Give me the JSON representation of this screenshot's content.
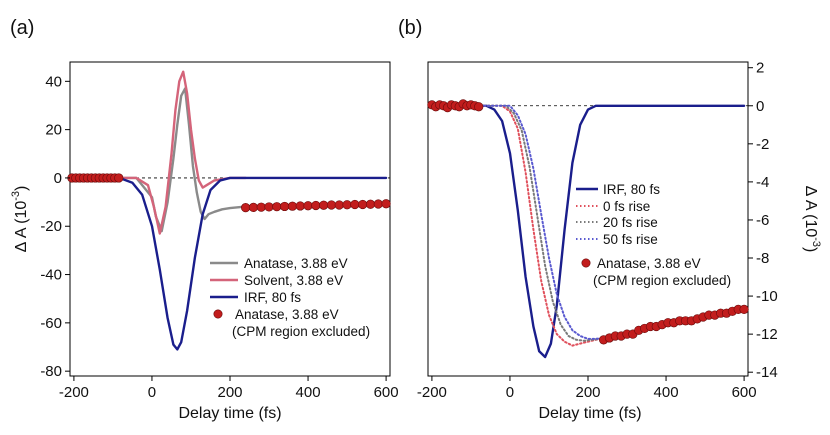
{
  "chart_data": [
    {
      "panel_label": "(a)",
      "type": "line",
      "xlabel": "Delay time (fs)",
      "ylabel": "ΔA (10⁻³)",
      "ylabel_main": "Δ A (10",
      "ylabel_exp": "-3",
      "ylabel_close": ")",
      "xlim": [
        -210,
        610
      ],
      "ylim": [
        -82,
        48
      ],
      "xticks": [
        -200,
        0,
        200,
        400,
        600
      ],
      "yticks": [
        40,
        20,
        0,
        -20,
        -40,
        -60,
        -80
      ],
      "zero_line": true,
      "legend_position": "lower-right",
      "legend": [
        "Anatase, 3.88 eV",
        "Solvent, 3.88 eV",
        "IRF, 80 fs",
        "Anatase, 3.88 eV",
        "(CPM region excluded)"
      ],
      "series": [
        {
          "name": "Anatase, 3.88 eV",
          "style": "line",
          "color": "#8a8a8a",
          "x": [
            -80,
            -40,
            0,
            10,
            25,
            40,
            55,
            65,
            75,
            85,
            95,
            105,
            115,
            125,
            135,
            145,
            160,
            180,
            200,
            230
          ],
          "y": [
            0,
            0,
            -8,
            -16,
            -22,
            -10,
            8,
            22,
            34,
            37,
            22,
            5,
            -6,
            -14,
            -17,
            -15,
            -14,
            -13,
            -12.5,
            -12
          ]
        },
        {
          "name": "Solvent, 3.88 eV",
          "style": "line",
          "color": "#d4647a",
          "x": [
            -80,
            -40,
            -10,
            5,
            20,
            35,
            50,
            60,
            70,
            80,
            90,
            100,
            110,
            120,
            130,
            140,
            160,
            200,
            240
          ],
          "y": [
            0,
            0,
            -3,
            -12,
            -23,
            -12,
            10,
            28,
            40,
            44,
            35,
            20,
            8,
            -1,
            -4,
            -3,
            -1,
            0,
            0
          ]
        },
        {
          "name": "IRF, 80 fs",
          "style": "line",
          "color": "#1a1e8c",
          "x": [
            -200,
            -100,
            -75,
            -50,
            -25,
            0,
            20,
            40,
            55,
            65,
            75,
            90,
            110,
            130,
            150,
            175,
            200,
            230,
            300,
            600
          ],
          "y": [
            0,
            0,
            -0.5,
            -2,
            -7,
            -20,
            -38,
            -58,
            -69,
            -71,
            -68,
            -55,
            -33,
            -15,
            -5,
            -1,
            0,
            0,
            0,
            0
          ]
        },
        {
          "name": "Anatase, 3.88 eV (CPM region excluded)",
          "style": "markers",
          "color": "#c21d1d",
          "x": [
            -205,
            -195,
            -185,
            -175,
            -165,
            -155,
            -145,
            -135,
            -125,
            -115,
            -105,
            -95,
            -85,
            240,
            260,
            280,
            300,
            320,
            340,
            360,
            380,
            400,
            420,
            440,
            460,
            480,
            500,
            520,
            540,
            560,
            580,
            600
          ],
          "y": [
            0,
            0,
            0,
            0,
            0,
            0,
            0,
            0,
            0,
            0,
            0,
            0,
            0,
            -12.3,
            -12.2,
            -12.1,
            -12,
            -11.9,
            -11.8,
            -11.7,
            -11.6,
            -11.5,
            -11.4,
            -11.3,
            -11.2,
            -11.2,
            -11.1,
            -11,
            -11,
            -10.9,
            -10.8,
            -10.7
          ]
        }
      ]
    },
    {
      "panel_label": "(b)",
      "type": "line",
      "xlabel": "Delay time (fs)",
      "ylabel": "ΔA (10⁻³)",
      "ylabel_main": "Δ A (10",
      "ylabel_exp": "-3",
      "ylabel_close": ")",
      "ylabel_side": "right",
      "xlim": [
        -210,
        610
      ],
      "ylim": [
        -14.2,
        2.3
      ],
      "xticks": [
        -200,
        0,
        200,
        400,
        600
      ],
      "yticks": [
        2,
        0,
        -2,
        -4,
        -6,
        -8,
        -10,
        -12,
        -14
      ],
      "zero_line": true,
      "legend_position": "middle-right",
      "legend": [
        "IRF, 80 fs",
        "0 fs rise",
        "20 fs rise",
        "50 fs rise",
        "Anatase, 3.88 eV",
        "(CPM region excluded)"
      ],
      "series": [
        {
          "name": "IRF, 80 fs",
          "style": "line",
          "color": "#1a1e8c",
          "x": [
            -200,
            -60,
            -40,
            -20,
            0,
            20,
            40,
            60,
            75,
            90,
            105,
            120,
            140,
            160,
            180,
            200,
            220,
            250,
            300,
            600
          ],
          "y": [
            0,
            0,
            -0.2,
            -0.8,
            -2.5,
            -5.5,
            -9,
            -11.6,
            -12.9,
            -13.2,
            -12.5,
            -10.5,
            -6.5,
            -3,
            -1,
            -0.2,
            0,
            0,
            0,
            0
          ]
        },
        {
          "name": "0 fs rise",
          "style": "dotted",
          "color": "#e0505c",
          "x": [
            -200,
            -20,
            0,
            20,
            40,
            60,
            80,
            100,
            120,
            140,
            160,
            180,
            200,
            220,
            240
          ],
          "y": [
            0,
            0,
            -0.3,
            -1.2,
            -3.5,
            -6.5,
            -9.2,
            -11,
            -12,
            -12.4,
            -12.6,
            -12.5,
            -12.4,
            -12.3,
            -12.2
          ]
        },
        {
          "name": "20 fs rise",
          "style": "dotted",
          "color": "#7a7a7a",
          "x": [
            -200,
            -10,
            10,
            30,
            50,
            70,
            90,
            110,
            130,
            150,
            170,
            190,
            210,
            230,
            250
          ],
          "y": [
            0,
            0,
            -0.4,
            -1.3,
            -3.2,
            -5.8,
            -8.4,
            -10.3,
            -11.5,
            -12.1,
            -12.3,
            -12.35,
            -12.3,
            -12.25,
            -12.2
          ]
        },
        {
          "name": "50 fs rise",
          "style": "dotted",
          "color": "#5a5ad0",
          "x": [
            -200,
            0,
            20,
            40,
            60,
            80,
            100,
            120,
            140,
            160,
            180,
            200,
            220,
            240,
            260
          ],
          "y": [
            0,
            0,
            -0.5,
            -1.5,
            -3.3,
            -5.7,
            -8,
            -9.9,
            -11.1,
            -11.8,
            -12.1,
            -12.25,
            -12.25,
            -12.2,
            -12.15
          ]
        },
        {
          "name": "Anatase, 3.88 eV (CPM region excluded)",
          "style": "markers",
          "color": "#c21d1d",
          "x": [
            -200,
            -190,
            -180,
            -170,
            -160,
            -150,
            -140,
            -130,
            -120,
            -110,
            -100,
            -90,
            -80,
            240,
            255,
            270,
            285,
            300,
            315,
            330,
            345,
            360,
            375,
            390,
            405,
            420,
            435,
            450,
            465,
            480,
            495,
            510,
            525,
            540,
            555,
            570,
            585,
            600
          ],
          "y": [
            0.05,
            -0.05,
            0.05,
            0,
            -0.1,
            0.05,
            0,
            -0.05,
            0.1,
            0,
            0.05,
            0,
            -0.05,
            -12.3,
            -12.2,
            -12.1,
            -12.1,
            -12.0,
            -12.0,
            -11.8,
            -11.7,
            -11.6,
            -11.6,
            -11.5,
            -11.4,
            -11.4,
            -11.3,
            -11.3,
            -11.3,
            -11.2,
            -11.1,
            -11.0,
            -11.0,
            -10.9,
            -10.9,
            -10.8,
            -10.7,
            -10.7
          ]
        }
      ]
    }
  ]
}
